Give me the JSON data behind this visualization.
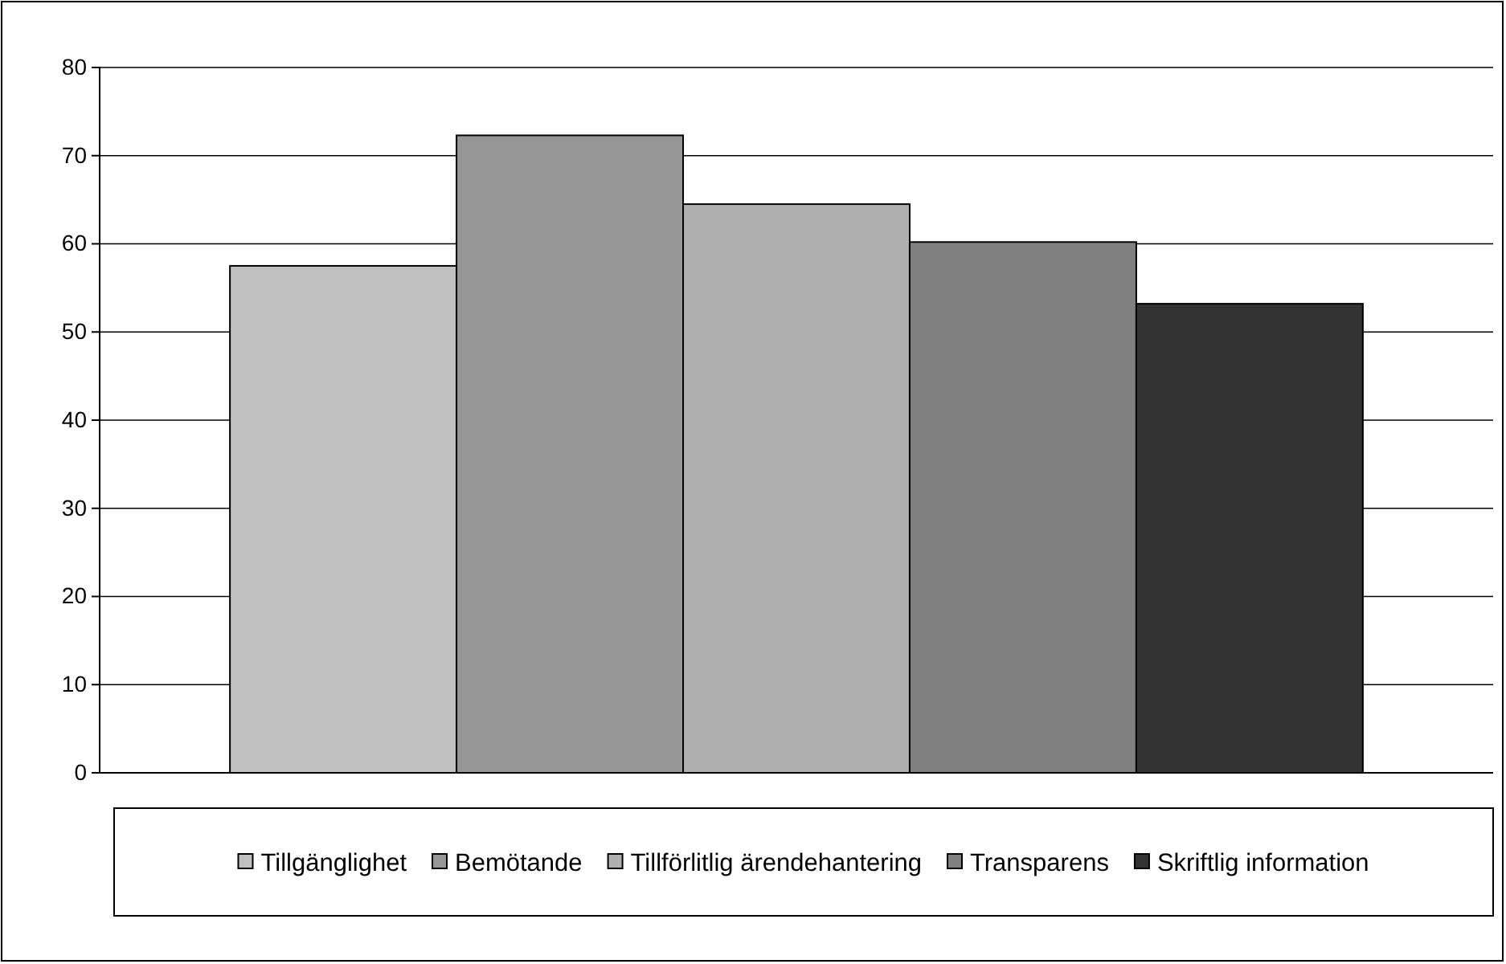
{
  "chart_data": {
    "type": "bar",
    "categories": [
      null
    ],
    "series": [
      {
        "name": "Tillgänglighet",
        "color": "#c0c0c0",
        "values": [
          57.5
        ]
      },
      {
        "name": "Bemötande",
        "color": "#969696",
        "values": [
          72.3
        ]
      },
      {
        "name": "Tillförlitlig ärendehantering",
        "color": "#b0b0b0",
        "values": [
          64.5
        ]
      },
      {
        "name": "Transparens",
        "color": "#808080",
        "values": [
          60.2
        ]
      },
      {
        "name": "Skriftlig information",
        "color": "#333333",
        "values": [
          53.2
        ]
      }
    ],
    "ylim": [
      0,
      80
    ],
    "yticks": [
      0,
      10,
      20,
      30,
      40,
      50,
      60,
      70,
      80
    ],
    "grid": "y",
    "legend": "bottom"
  }
}
